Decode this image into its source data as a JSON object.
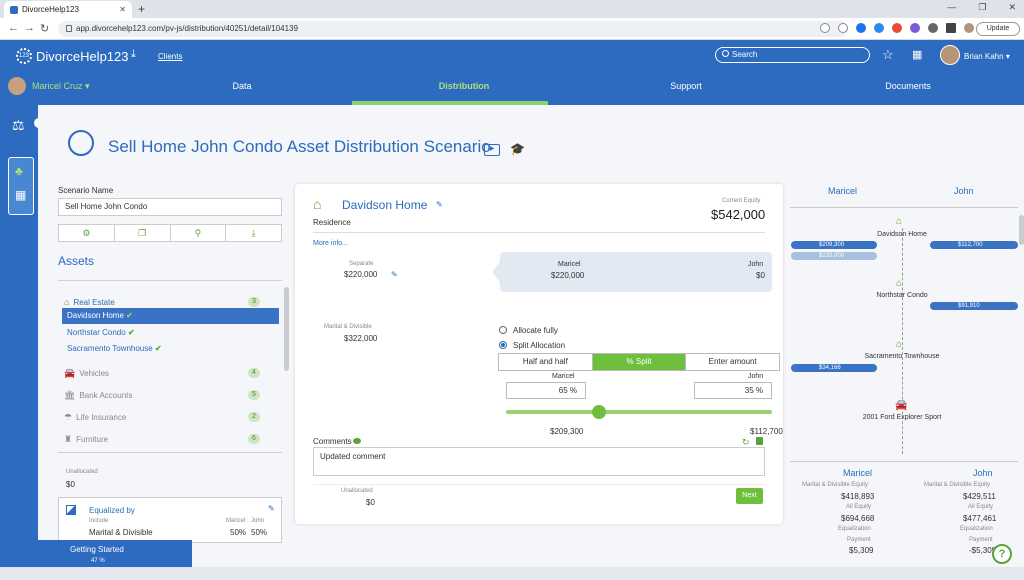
{
  "browser": {
    "tab_title": "DivorceHelp123",
    "url": "app.divorcehelp123.com/pv-js/distribution/40251/detail/104139",
    "update_label": "Update"
  },
  "header": {
    "app_name": "DivorceHelp123",
    "clients_link": "Clients",
    "search_placeholder": "Search",
    "user_name": "Brian Kahn"
  },
  "nav": {
    "client_name": "Maricel Cruz",
    "tabs": [
      {
        "label": "Data"
      },
      {
        "label": "Distribution"
      },
      {
        "label": "Support"
      },
      {
        "label": "Documents"
      }
    ],
    "active_tab": "Distribution"
  },
  "page": {
    "title": "Sell Home John Condo Asset Distribution Scenario"
  },
  "left_panel": {
    "scenario_label": "Scenario Name",
    "scenario_value": "Sell Home John Condo",
    "assets_title": "Assets",
    "categories": [
      {
        "label": "Real Estate",
        "count": "3"
      },
      {
        "label": "Vehicles",
        "count": "4"
      },
      {
        "label": "Bank Accounts",
        "count": "5"
      },
      {
        "label": "Life Insurance",
        "count": "2"
      },
      {
        "label": "Furniture",
        "count": "6"
      }
    ],
    "real_estate_items": [
      "Davidson Home",
      "Northstar Condo",
      "Sacramento Townhouse"
    ],
    "unallocated_label": "Unallocated",
    "unallocated_value": "$0",
    "equalized": {
      "title": "Equalized by",
      "include_label": "Include",
      "include_value": "Marital & Divisible",
      "maricel_label": "Maricel",
      "john_label": "John",
      "maricel_value": "50%",
      "john_value": "50%"
    }
  },
  "detail": {
    "asset_name": "Davidson Home",
    "asset_type": "Residence",
    "current_equity_label": "Current Equity",
    "current_equity_value": "$542,000",
    "more_info": "More info...",
    "separate_label": "Separate",
    "separate_value": "$220,000",
    "separate_split": {
      "maricel_label": "Maricel",
      "maricel_value": "$220,000",
      "john_label": "John",
      "john_value": "$0"
    },
    "marital_label": "Marital & Divisible",
    "marital_value": "$322,000",
    "allocate_fully": "Allocate fully",
    "split_allocation": "Split Allocation",
    "split_modes": [
      "Half and half",
      "% Split",
      "Enter amount"
    ],
    "active_mode": "% Split",
    "split_maricel_label": "Maricel",
    "split_john_label": "John",
    "split_maricel_pct": "65 %",
    "split_john_pct": "35 %",
    "slider_fraction": 0.35,
    "split_maricel_amount": "$209,300",
    "split_john_amount": "$112,700",
    "comments_label": "Comments",
    "comment_text": "Updated comment",
    "unallocated_label": "Unallocated",
    "unallocated_value": "$0",
    "next_label": "Next"
  },
  "right_panel": {
    "maricel_header": "Maricel",
    "john_header": "John",
    "assets": [
      {
        "name": "Davidson Home",
        "maricel": "$209,300",
        "maricel_sep": "$220,000",
        "john": "$112,700"
      },
      {
        "name": "Northstar Condo",
        "maricel": "",
        "john": "$91,910"
      },
      {
        "name": "Sacramento Townhouse",
        "maricel": "$34,166",
        "john": ""
      },
      {
        "name": "2001 Ford Explorer Sport",
        "maricel": "",
        "john": ""
      }
    ],
    "summary": {
      "maricel": {
        "title": "Maricel",
        "md_label": "Marital & Divisible Equity",
        "md_value": "$418,893",
        "all_label": "All Equity",
        "all_value": "$694,668",
        "eq_label": "Equalization",
        "eq_sub": "Payment",
        "eq_value": "$5,309"
      },
      "john": {
        "title": "John",
        "md_label": "Marital & Divisible Equity",
        "md_value": "$429,511",
        "all_label": "All Equity",
        "all_value": "$477,461",
        "eq_label": "Equalization",
        "eq_sub": "Payment",
        "eq_value": "-$5,309"
      }
    }
  },
  "getting_started": {
    "title": "Getting Started",
    "progress": "47 %"
  },
  "colors": {
    "brand_blue": "#2c6bbf",
    "accent_green": "#6fbf3f"
  }
}
